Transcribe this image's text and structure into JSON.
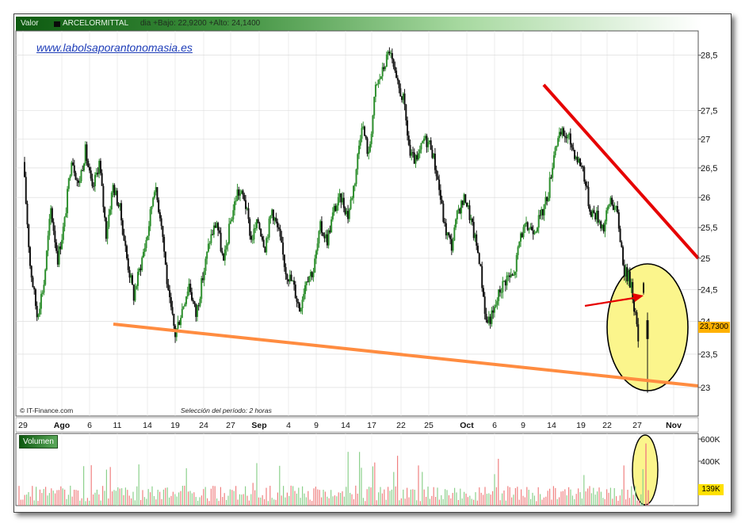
{
  "header": {
    "label": "Valor",
    "ticker": "ARCELORMITTAL",
    "info": "dia +Bajo: 22,9200 +Alto: 24,1400"
  },
  "watermark": "www.labolsaporantonomasia.es",
  "credit": "© IT-Finance.com",
  "period_note": "Selección del período: 2 horas",
  "volume_panel_label": "Volumen",
  "last_price_label": "23,7300",
  "last_volume_label": "139K",
  "colors": {
    "up": "#2e8f2e",
    "down": "#111111",
    "resistance": "#e60000",
    "support": "#ff8c40",
    "highlight_fill": "#fbf58c",
    "arrow": "#e60000",
    "volume_up": "#8cd08c",
    "volume_down": "#f08080",
    "title_bar": "#0d5a10"
  },
  "chart_data": [
    {
      "type": "candlestick",
      "title": "ARCELORMITTAL",
      "x_tick_labels": [
        "29",
        "Ago",
        "6",
        "11",
        "14",
        "19",
        "24",
        "27",
        "Sep",
        "4",
        "9",
        "14",
        "17",
        "22",
        "25",
        "Oct",
        "6",
        "9",
        "14",
        "19",
        "22",
        "27",
        "Nov"
      ],
      "y_tick_labels": [
        "23",
        "23,5",
        "24",
        "24,5",
        "25",
        "25,5",
        "26",
        "26,5",
        "27",
        "27,5",
        "28,5"
      ],
      "y_ticks": [
        23,
        23.5,
        24,
        24.5,
        25,
        25.5,
        26,
        26.5,
        27,
        27.5,
        28.5
      ],
      "ylim": [
        22.58,
        28.95
      ],
      "y_scale": "log",
      "grid": true,
      "last_price": 23.73,
      "day_low": 22.92,
      "day_high": 24.14,
      "closes": [
        [
          0,
          26.6
        ],
        [
          1,
          24.9
        ],
        [
          2,
          24.1
        ],
        [
          3,
          24.6
        ],
        [
          4,
          25.8
        ],
        [
          5,
          25.0
        ],
        [
          6,
          25.6
        ],
        [
          7,
          26.7
        ],
        [
          8,
          26.2
        ],
        [
          9,
          26.8
        ],
        [
          10,
          26.1
        ],
        [
          11,
          26.6
        ],
        [
          12,
          25.4
        ],
        [
          13,
          26.2
        ],
        [
          14,
          25.8
        ],
        [
          15,
          25.0
        ],
        [
          16,
          24.4
        ],
        [
          17,
          24.9
        ],
        [
          18,
          25.4
        ],
        [
          19,
          26.2
        ],
        [
          20,
          25.6
        ],
        [
          21,
          24.4
        ],
        [
          22,
          23.8
        ],
        [
          23,
          24.2
        ],
        [
          24,
          24.6
        ],
        [
          25,
          24.1
        ],
        [
          26,
          24.7
        ],
        [
          27,
          25.3
        ],
        [
          28,
          25.6
        ],
        [
          29,
          24.9
        ],
        [
          30,
          25.6
        ],
        [
          31,
          26.1
        ],
        [
          32,
          26.0
        ],
        [
          33,
          25.3
        ],
        [
          34,
          25.6
        ],
        [
          35,
          25.2
        ],
        [
          36,
          25.8
        ],
        [
          37,
          25.4
        ],
        [
          38,
          24.8
        ],
        [
          39,
          24.6
        ],
        [
          40,
          24.2
        ],
        [
          41,
          24.7
        ],
        [
          42,
          24.8
        ],
        [
          43,
          25.5
        ],
        [
          44,
          25.3
        ],
        [
          45,
          25.8
        ],
        [
          46,
          26.0
        ],
        [
          47,
          25.7
        ],
        [
          48,
          26.3
        ],
        [
          49,
          27.3
        ],
        [
          50,
          26.7
        ],
        [
          51,
          27.9
        ],
        [
          52,
          28.2
        ],
        [
          53,
          28.6
        ],
        [
          54,
          28.0
        ],
        [
          55,
          27.7
        ],
        [
          56,
          26.7
        ],
        [
          57,
          26.6
        ],
        [
          58,
          27.0
        ],
        [
          59,
          26.9
        ],
        [
          60,
          26.3
        ],
        [
          61,
          25.5
        ],
        [
          62,
          25.2
        ],
        [
          63,
          25.8
        ],
        [
          64,
          26.0
        ],
        [
          65,
          25.5
        ],
        [
          66,
          25.0
        ],
        [
          67,
          24.0
        ],
        [
          68,
          24.1
        ],
        [
          69,
          24.5
        ],
        [
          70,
          24.7
        ],
        [
          71,
          24.7
        ],
        [
          72,
          25.4
        ],
        [
          73,
          25.5
        ],
        [
          74,
          25.5
        ],
        [
          75,
          25.7
        ],
        [
          76,
          26.1
        ],
        [
          77,
          26.9
        ],
        [
          78,
          27.1
        ],
        [
          79,
          27.0
        ],
        [
          80,
          26.7
        ],
        [
          81,
          26.5
        ],
        [
          82,
          25.8
        ],
        [
          83,
          25.7
        ],
        [
          84,
          25.5
        ],
        [
          85,
          26.0
        ],
        [
          86,
          25.7
        ],
        [
          87,
          24.8
        ],
        [
          88,
          24.6
        ],
        [
          89,
          23.73
        ]
      ]
    },
    {
      "type": "bar",
      "title": "Volumen",
      "y_tick_labels": [
        "400K",
        "600K"
      ],
      "y_ticks": [
        400000,
        600000
      ],
      "last_value": 139000,
      "last_value_label": "139K"
    }
  ]
}
